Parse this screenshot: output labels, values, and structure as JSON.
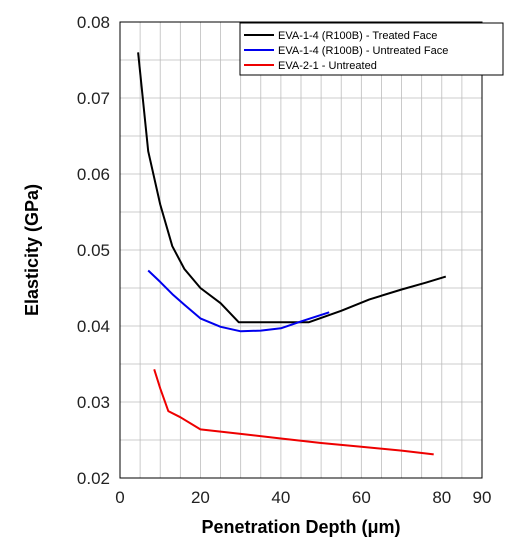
{
  "chart_data": {
    "type": "line",
    "title": "",
    "xlabel": "Penetration Depth  (μm)",
    "ylabel": "Elasticity (GPa)",
    "xlim": [
      0,
      90
    ],
    "ylim": [
      0.02,
      0.08
    ],
    "xticks": [
      0,
      20,
      40,
      60,
      80,
      90
    ],
    "yticks": [
      0.02,
      0.03,
      0.04,
      0.05,
      0.06,
      0.07,
      0.08
    ],
    "xtick_labels": [
      "0",
      "20",
      "40",
      "60",
      "80",
      "90"
    ],
    "ytick_labels": [
      "0.02",
      "0.03",
      "0.04",
      "0.05",
      "0.06",
      "0.07",
      "0.08"
    ],
    "grid": true,
    "legend_position": "top-right",
    "series": [
      {
        "name": "EVA-1-4 (R100B) - Treated Face",
        "color": "#000000",
        "x": [
          4.5,
          7,
          10,
          13,
          16,
          20,
          25,
          29.5,
          32,
          40,
          47,
          55,
          62,
          70,
          76,
          81
        ],
        "y": [
          0.076,
          0.063,
          0.056,
          0.0505,
          0.0475,
          0.045,
          0.043,
          0.0405,
          0.0405,
          0.0405,
          0.0405,
          0.042,
          0.0435,
          0.0448,
          0.0457,
          0.0465
        ]
      },
      {
        "name": "EVA-1-4 (R100B) - Untreated Face",
        "color": "#0000ee",
        "x": [
          7,
          10,
          13,
          16,
          20,
          25,
          30,
          35,
          40,
          45,
          52
        ],
        "y": [
          0.0473,
          0.0458,
          0.0442,
          0.0428,
          0.041,
          0.0399,
          0.0393,
          0.0394,
          0.0397,
          0.0406,
          0.0418
        ]
      },
      {
        "name": "EVA-2-1 - Untreated",
        "color": "#ee0000",
        "x": [
          8.5,
          10,
          12,
          15,
          20,
          30,
          40,
          50,
          60,
          70,
          78
        ],
        "y": [
          0.0343,
          0.0318,
          0.0288,
          0.028,
          0.0264,
          0.0258,
          0.0252,
          0.0246,
          0.0241,
          0.0236,
          0.0231
        ]
      }
    ]
  }
}
